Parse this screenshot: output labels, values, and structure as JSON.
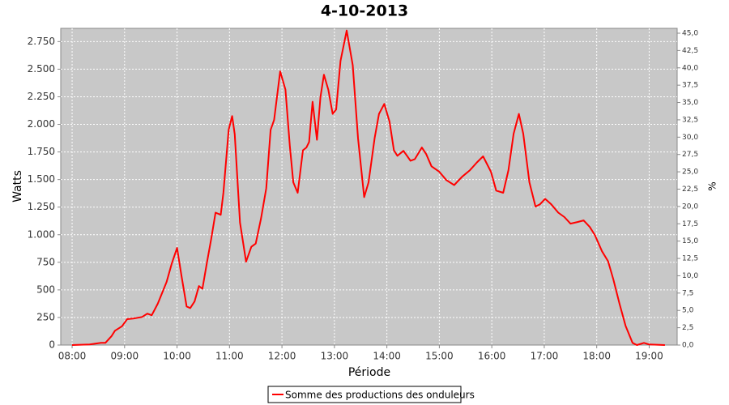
{
  "chart_data": {
    "type": "line",
    "title": "4-10-2013",
    "x_label": "Période",
    "y_label": "Watts",
    "y2_label": "%",
    "x": [
      "08:00",
      "08:20",
      "08:33",
      "08:38",
      "08:45",
      "08:49",
      "08:57",
      "09:03",
      "09:10",
      "09:20",
      "09:26",
      "09:31",
      "09:38",
      "09:48",
      "09:54",
      "10:00",
      "10:05",
      "10:11",
      "10:15",
      "10:20",
      "10:25",
      "10:29",
      "10:34",
      "10:39",
      "10:44",
      "10:50",
      "10:53",
      "10:59",
      "11:03",
      "11:06",
      "11:12",
      "11:19",
      "11:25",
      "11:30",
      "11:36",
      "11:42",
      "11:47",
      "11:51",
      "11:58",
      "12:04",
      "12:09",
      "12:13",
      "12:18",
      "12:24",
      "12:28",
      "12:31",
      "12:35",
      "12:40",
      "12:44",
      "12:48",
      "12:53",
      "12:58",
      "13:02",
      "13:07",
      "13:14",
      "13:21",
      "13:27",
      "13:34",
      "13:39",
      "13:46",
      "13:51",
      "13:57",
      "14:03",
      "14:08",
      "14:12",
      "14:19",
      "14:27",
      "14:32",
      "14:40",
      "14:45",
      "14:51",
      "15:00",
      "15:08",
      "15:17",
      "15:26",
      "15:35",
      "15:43",
      "15:50",
      "15:59",
      "16:05",
      "16:13",
      "16:19",
      "16:25",
      "16:31",
      "16:36",
      "16:43",
      "16:50",
      "16:55",
      "17:01",
      "17:08",
      "17:16",
      "17:23",
      "17:30",
      "17:38",
      "17:45",
      "17:52",
      "17:58",
      "18:06",
      "18:13",
      "18:19",
      "18:26",
      "18:33",
      "18:41",
      "18:46",
      "18:54",
      "19:00",
      "19:18"
    ],
    "series": [
      {
        "name": "Somme des productions des onduleurs",
        "color": "#ff0000",
        "values": [
          0,
          5,
          20,
          20,
          80,
          130,
          170,
          235,
          240,
          255,
          285,
          270,
          375,
          570,
          740,
          880,
          630,
          350,
          335,
          395,
          535,
          510,
          740,
          960,
          1200,
          1180,
          1380,
          1950,
          2075,
          1910,
          1110,
          755,
          890,
          920,
          1145,
          1420,
          1950,
          2040,
          2480,
          2315,
          1805,
          1475,
          1380,
          1765,
          1790,
          1840,
          2205,
          1860,
          2245,
          2450,
          2315,
          2095,
          2135,
          2575,
          2850,
          2535,
          1875,
          1340,
          1475,
          1875,
          2095,
          2185,
          2025,
          1765,
          1715,
          1760,
          1670,
          1685,
          1790,
          1730,
          1620,
          1570,
          1495,
          1450,
          1525,
          1585,
          1655,
          1710,
          1570,
          1400,
          1380,
          1585,
          1915,
          2095,
          1915,
          1475,
          1255,
          1275,
          1325,
          1275,
          1200,
          1160,
          1100,
          1115,
          1130,
          1070,
          995,
          850,
          760,
          595,
          375,
          175,
          20,
          0,
          20,
          5,
          0
        ]
      }
    ],
    "xlim": [
      "07:47",
      "19:32"
    ],
    "xticks": [
      "08:00",
      "09:00",
      "10:00",
      "11:00",
      "12:00",
      "13:00",
      "14:00",
      "15:00",
      "16:00",
      "17:00",
      "18:00",
      "19:00"
    ],
    "ylim": [
      0,
      2870
    ],
    "yticks": [
      0,
      250,
      500,
      750,
      {
        "value": 1000,
        "label": "1.000"
      },
      {
        "value": 1250,
        "label": "1.250"
      },
      {
        "value": 1500,
        "label": "1.500"
      },
      {
        "value": 1750,
        "label": "1.750"
      },
      {
        "value": 2000,
        "label": "2.000"
      },
      {
        "value": 2250,
        "label": "2.250"
      },
      {
        "value": 2500,
        "label": "2.500"
      },
      {
        "value": 2750,
        "label": "2.750"
      }
    ],
    "y2lim": [
      0,
      45.7
    ],
    "y2ticks": [
      {
        "value": 0,
        "label": "0,0"
      },
      {
        "value": 2.5,
        "label": "2,5"
      },
      {
        "value": 5,
        "label": "5,0"
      },
      {
        "value": 7.5,
        "label": "7,5"
      },
      {
        "value": 10,
        "label": "10,0"
      },
      {
        "value": 12.5,
        "label": "12,5"
      },
      {
        "value": 15,
        "label": "15,0"
      },
      {
        "value": 17.5,
        "label": "17,5"
      },
      {
        "value": 20,
        "label": "20,0"
      },
      {
        "value": 22.5,
        "label": "22,5"
      },
      {
        "value": 25,
        "label": "25,0"
      },
      {
        "value": 27.5,
        "label": "27,5"
      },
      {
        "value": 30,
        "label": "30,0"
      },
      {
        "value": 32.5,
        "label": "32,5"
      },
      {
        "value": 35,
        "label": "35,0"
      },
      {
        "value": 37.5,
        "label": "37,5"
      },
      {
        "value": 40,
        "label": "40,0"
      },
      {
        "value": 42.5,
        "label": "42,5"
      },
      {
        "value": 45,
        "label": "45,0"
      }
    ],
    "grid": true,
    "legend": "bottom"
  }
}
